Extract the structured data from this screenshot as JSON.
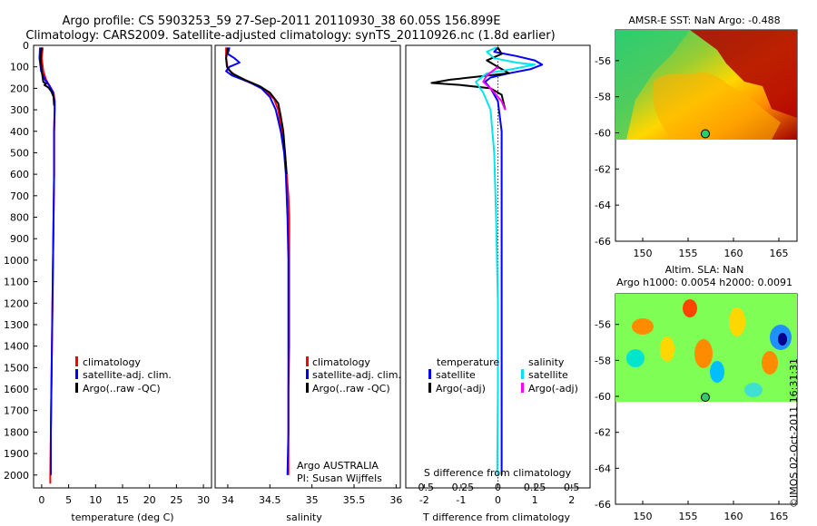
{
  "header": {
    "line1": "Argo profile: CS 5903253_59 27-Sep-2011 20110930_38 60.05S 156.899E",
    "line2": "Climatology: CARS2009. Satellite-adjusted climatology: synTS_20110926.nc (1.8d earlier)"
  },
  "colors": {
    "climatology": "#ff0000",
    "satellite": "#0000ff",
    "argo": "#000000",
    "satellite_diff_salinity": "#00e5ee",
    "argo_diff_salinity": "#ff00ff"
  },
  "chart_data": [
    {
      "id": "temperature",
      "type": "line",
      "xlabel": "temperature (deg C)",
      "ylabel": "",
      "xlim": [
        -1.5,
        31.5
      ],
      "ylim": [
        2060,
        0
      ],
      "xticks": [
        "0",
        "5",
        "10",
        "15",
        "20",
        "25",
        "30"
      ],
      "xtick_values": [
        0,
        5,
        10,
        15,
        20,
        25,
        30
      ],
      "yticks": [
        "0",
        "100",
        "200",
        "300",
        "400",
        "500",
        "600",
        "700",
        "800",
        "900",
        "1000",
        "1100",
        "1200",
        "1300",
        "1400",
        "1500",
        "1600",
        "1700",
        "1800",
        "1900",
        "2000"
      ],
      "legend": [
        "climatology",
        "satellite-adj. clim.",
        "Argo(..raw -QC)"
      ],
      "series": [
        {
          "name": "climatology",
          "color": "#ff0000",
          "points": [
            [
              0.2,
              10
            ],
            [
              0.0,
              60
            ],
            [
              0.3,
              120
            ],
            [
              0.8,
              160
            ],
            [
              1.5,
              190
            ],
            [
              2.2,
              220
            ],
            [
              2.4,
              260
            ],
            [
              2.4,
              300
            ],
            [
              2.3,
              400
            ],
            [
              2.3,
              600
            ],
            [
              2.2,
              800
            ],
            [
              2.1,
              1000
            ],
            [
              2.0,
              1200
            ],
            [
              1.9,
              1400
            ],
            [
              1.8,
              1600
            ],
            [
              1.7,
              1800
            ],
            [
              1.6,
              2000
            ],
            [
              1.6,
              2040
            ]
          ]
        },
        {
          "name": "satellite-adj. clim.",
          "color": "#0000ff",
          "points": [
            [
              -0.3,
              10
            ],
            [
              -0.4,
              60
            ],
            [
              -0.1,
              120
            ],
            [
              0.6,
              160
            ],
            [
              1.5,
              190
            ],
            [
              2.1,
              220
            ],
            [
              2.4,
              260
            ],
            [
              2.4,
              300
            ],
            [
              2.3,
              400
            ],
            [
              2.3,
              600
            ],
            [
              2.2,
              800
            ],
            [
              2.1,
              1000
            ],
            [
              2.0,
              1200
            ],
            [
              1.9,
              1400
            ],
            [
              1.8,
              1600
            ],
            [
              1.7,
              1800
            ],
            [
              1.7,
              2000
            ]
          ]
        },
        {
          "name": "Argo(..raw -QC)",
          "color": "#000000",
          "points": [
            [
              0.0,
              10
            ],
            [
              -0.2,
              60
            ],
            [
              0.0,
              120
            ],
            [
              0.3,
              170
            ],
            [
              0.8,
              180
            ],
            [
              0.5,
              185
            ],
            [
              1.2,
              195
            ],
            [
              1.8,
              215
            ],
            [
              2.2,
              240
            ],
            [
              2.3,
              280
            ]
          ]
        }
      ]
    },
    {
      "id": "salinity",
      "type": "line",
      "xlabel": "salinity",
      "xlim": [
        33.85,
        36.05
      ],
      "ylim": [
        2060,
        0
      ],
      "xticks": [
        "34",
        "34.5",
        "35",
        "35.5",
        "36"
      ],
      "xtick_values": [
        34,
        34.5,
        35,
        35.5,
        36
      ],
      "legend": [
        "climatology",
        "satellite-adj. clim.",
        "Argo(..raw -QC)"
      ],
      "annotation": [
        "Argo AUSTRALIA",
        "PI: Susan Wijffels"
      ],
      "series": [
        {
          "name": "climatology",
          "color": "#ff0000",
          "points": [
            [
              33.98,
              10
            ],
            [
              33.98,
              60
            ],
            [
              34.0,
              110
            ],
            [
              34.12,
              150
            ],
            [
              34.3,
              180
            ],
            [
              34.45,
              210
            ],
            [
              34.55,
              250
            ],
            [
              34.6,
              300
            ],
            [
              34.64,
              400
            ],
            [
              34.68,
              500
            ],
            [
              34.7,
              600
            ],
            [
              34.72,
              700
            ],
            [
              34.73,
              800
            ],
            [
              34.73,
              1000
            ],
            [
              34.73,
              1200
            ],
            [
              34.73,
              1400
            ],
            [
              34.72,
              1600
            ],
            [
              34.72,
              1800
            ],
            [
              34.72,
              2000
            ]
          ]
        },
        {
          "name": "satellite-adj. clim.",
          "color": "#0000ff",
          "points": [
            [
              34.02,
              10
            ],
            [
              34.0,
              40
            ],
            [
              34.08,
              60
            ],
            [
              34.14,
              80
            ],
            [
              34.02,
              100
            ],
            [
              33.98,
              120
            ],
            [
              34.05,
              140
            ],
            [
              34.25,
              170
            ],
            [
              34.4,
              200
            ],
            [
              34.5,
              240
            ],
            [
              34.57,
              300
            ],
            [
              34.63,
              400
            ],
            [
              34.67,
              500
            ],
            [
              34.69,
              600
            ],
            [
              34.71,
              800
            ],
            [
              34.72,
              1000
            ],
            [
              34.72,
              1200
            ],
            [
              34.72,
              1400
            ],
            [
              34.72,
              1600
            ],
            [
              34.72,
              1800
            ],
            [
              34.71,
              2000
            ]
          ]
        },
        {
          "name": "Argo(..raw -QC)",
          "color": "#000000",
          "points": [
            [
              34.0,
              10
            ],
            [
              33.98,
              60
            ],
            [
              33.99,
              100
            ],
            [
              34.05,
              130
            ],
            [
              34.2,
              160
            ],
            [
              34.38,
              190
            ],
            [
              34.5,
              220
            ],
            [
              34.6,
              270
            ],
            [
              34.63,
              330
            ],
            [
              34.66,
              400
            ],
            [
              34.68,
              500
            ],
            [
              34.7,
              600
            ]
          ]
        }
      ]
    },
    {
      "id": "differences",
      "type": "line",
      "xlabel": "T difference from climatology",
      "xlabel_top": "S difference from climatology",
      "xlim": [
        -2.5,
        2.5
      ],
      "ylim": [
        2060,
        0
      ],
      "xticks": [
        "-2",
        "-1",
        "0",
        "1",
        "2"
      ],
      "xtick_values": [
        -2,
        -1,
        0,
        1,
        2
      ],
      "sticks": [
        "-0.5",
        "-0.25",
        "0",
        "0.25",
        "0.5"
      ],
      "stick_values": [
        -0.5,
        -0.25,
        0,
        0.25,
        0.5
      ],
      "legend_headers": [
        "temperature",
        "salinity"
      ],
      "legend": [
        "satellite",
        "Argo(-adj)",
        "satellite",
        "Argo(-adj)"
      ],
      "series": [
        {
          "name": "temperature satellite",
          "color": "#0000ff",
          "points": [
            [
              0.0,
              10
            ],
            [
              -0.1,
              30
            ],
            [
              0.5,
              50
            ],
            [
              1.0,
              70
            ],
            [
              1.2,
              90
            ],
            [
              0.9,
              110
            ],
            [
              0.3,
              130
            ],
            [
              -0.2,
              150
            ],
            [
              -0.35,
              170
            ],
            [
              -0.2,
              200
            ],
            [
              0.0,
              260
            ],
            [
              0.1,
              400
            ],
            [
              0.1,
              800
            ],
            [
              0.1,
              1200
            ],
            [
              0.1,
              1600
            ],
            [
              0.1,
              2000
            ]
          ]
        },
        {
          "name": "temperature Argo(-adj)",
          "color": "#000000",
          "points": [
            [
              0.0,
              10
            ],
            [
              0.1,
              40
            ],
            [
              -0.3,
              70
            ],
            [
              0.0,
              100
            ],
            [
              0.3,
              130
            ],
            [
              -1.3,
              160
            ],
            [
              -1.8,
              175
            ],
            [
              -1.0,
              185
            ],
            [
              -0.2,
              200
            ],
            [
              0.1,
              230
            ],
            [
              0.2,
              300
            ]
          ]
        },
        {
          "name": "salinity satellite",
          "color": "#00e5ee",
          "points": [
            [
              -0.05,
              10
            ],
            [
              -0.3,
              30
            ],
            [
              -0.1,
              60
            ],
            [
              0.5,
              80
            ],
            [
              1.0,
              90
            ],
            [
              0.4,
              110
            ],
            [
              -0.3,
              130
            ],
            [
              -0.6,
              170
            ],
            [
              -0.4,
              220
            ],
            [
              -0.2,
              300
            ],
            [
              -0.1,
              500
            ],
            [
              -0.05,
              800
            ],
            [
              0.0,
              1200
            ],
            [
              0.0,
              1600
            ],
            [
              -0.02,
              2000
            ]
          ]
        },
        {
          "name": "salinity Argo(-adj)",
          "color": "#ff00ff",
          "points": [
            [
              0.0,
              100
            ],
            [
              -0.3,
              140
            ],
            [
              -0.4,
              170
            ],
            [
              -0.2,
              200
            ],
            [
              0.1,
              260
            ],
            [
              0.2,
              300
            ]
          ]
        }
      ]
    }
  ],
  "maps": [
    {
      "id": "sst",
      "title_line1": "AMSR-E SST: NaN Argo: -0.488",
      "title_line2": "",
      "xticks": [
        "150",
        "155",
        "160",
        "165"
      ],
      "xtick_values": [
        150,
        155,
        160,
        165
      ],
      "yticks": [
        "-56",
        "-58",
        "-60",
        "-62",
        "-64",
        "-66"
      ],
      "ytick_values": [
        -56,
        -58,
        -60,
        -62,
        -64,
        -66
      ],
      "xlim": [
        147,
        167
      ],
      "ylim": [
        -66,
        -54.3
      ],
      "argo_position": [
        156.899,
        -60.05
      ]
    },
    {
      "id": "sla",
      "title_line1": "Altim. SLA: NaN",
      "title_line2": "Argo h1000: 0.0054 h2000: 0.0091",
      "xticks": [
        "150",
        "155",
        "160",
        "165"
      ],
      "xtick_values": [
        150,
        155,
        160,
        165
      ],
      "yticks": [
        "-56",
        "-58",
        "-60",
        "-62",
        "-64",
        "-66"
      ],
      "ytick_values": [
        -56,
        -58,
        -60,
        -62,
        -64,
        -66
      ],
      "xlim": [
        147,
        167
      ],
      "ylim": [
        -66,
        -54.3
      ],
      "argo_position": [
        156.899,
        -60.05
      ]
    }
  ],
  "stamp": "©IMOS 02-Oct-2011 16:31:31"
}
